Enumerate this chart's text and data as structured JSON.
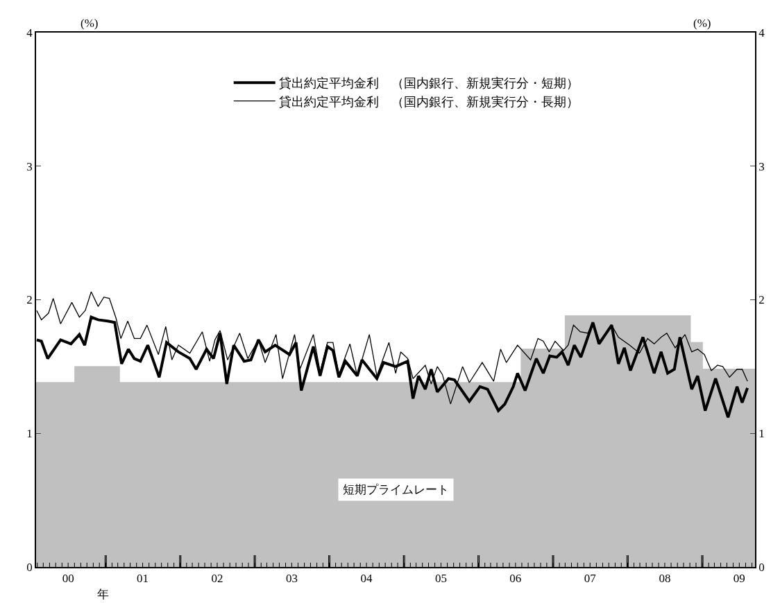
{
  "chart_data": {
    "type": "line",
    "ylabel": "(%)",
    "y2label": "(%)",
    "annotations": [
      "年"
    ],
    "xlim": [
      "2000-01-26",
      "2009-09-16"
    ],
    "xticks": [
      {
        "value": "2000-07-01",
        "label": "00"
      },
      {
        "value": "2001-01-01",
        "label": null
      },
      {
        "value": "2001-07-01",
        "label": "01"
      },
      {
        "value": "2002-01-01",
        "label": null
      },
      {
        "value": "2002-07-01",
        "label": "02"
      },
      {
        "value": "2003-01-01",
        "label": null
      },
      {
        "value": "2003-07-01",
        "label": "03"
      },
      {
        "value": "2004-01-01",
        "label": null
      },
      {
        "value": "2004-07-01",
        "label": "04"
      },
      {
        "value": "2005-01-01",
        "label": null
      },
      {
        "value": "2005-07-01",
        "label": "05"
      },
      {
        "value": "2006-01-01",
        "label": null
      },
      {
        "value": "2006-07-01",
        "label": "06"
      },
      {
        "value": "2007-01-01",
        "label": null
      },
      {
        "value": "2007-07-01",
        "label": "07"
      },
      {
        "value": "2008-01-01",
        "label": null
      },
      {
        "value": "2008-07-01",
        "label": "08"
      },
      {
        "value": "2009-01-01",
        "label": null
      },
      {
        "value": "2009-07-01",
        "label": "09"
      }
    ],
    "ylim": [
      0,
      4
    ],
    "yticks": [
      0,
      1,
      2,
      3,
      4
    ],
    "y2lim": [
      0,
      4
    ],
    "y2ticks": [
      0,
      1,
      2,
      3,
      4
    ],
    "legend": "top",
    "marker": "none",
    "line_style": "solid",
    "series": [
      {
        "name": "短期プライムレート",
        "type": "area",
        "color": "#c0c0c0",
        "x": [
          "2000-01-26",
          "2000-08-03",
          "2000-08-03",
          "2001-03-09",
          "2001-03-09",
          "2006-07-29",
          "2006-07-29",
          "2007-03-02",
          "2007-03-02",
          "2008-11-03",
          "2008-11-03",
          "2009-01-01",
          "2009-01-01",
          "2009-09-16"
        ],
        "values": [
          1.38,
          1.38,
          1.5,
          1.5,
          1.38,
          1.38,
          1.63,
          1.63,
          1.88,
          1.88,
          1.68,
          1.68,
          1.48,
          1.48
        ]
      },
      {
        "name": "貸出約定平均金利　（国内銀行、新規実行分・短期）",
        "color": "#000000",
        "x": [
          "2000-01-29",
          "2000-02-21",
          "2000-03-23",
          "2000-05-25",
          "2000-07-15",
          "2000-08-25",
          "2000-09-20",
          "2000-10-22",
          "2000-11-25",
          "2001-01-11",
          "2001-02-14",
          "2001-03-20",
          "2001-04-22",
          "2001-05-21",
          "2001-06-20",
          "2001-07-26",
          "2001-09-20",
          "2001-10-26",
          "2001-12-23",
          "2002-02-17",
          "2002-03-20",
          "2002-05-10",
          "2002-06-13",
          "2002-07-15",
          "2002-08-17",
          "2002-09-20",
          "2002-11-10",
          "2002-12-13",
          "2003-01-19",
          "2003-02-21",
          "2003-04-11",
          "2003-06-20",
          "2003-07-22",
          "2003-08-17",
          "2003-10-15",
          "2003-11-17",
          "2003-12-23",
          "2004-01-19",
          "2004-02-17",
          "2004-03-20",
          "2004-05-17",
          "2004-06-09",
          "2004-08-21",
          "2004-09-23",
          "2004-11-21",
          "2005-01-19",
          "2005-02-14",
          "2005-03-13",
          "2005-04-15",
          "2005-05-14",
          "2005-06-13",
          "2005-08-07",
          "2005-09-05",
          "2005-11-17",
          "2006-01-08",
          "2006-02-14",
          "2006-04-08",
          "2006-05-10",
          "2006-06-20",
          "2006-07-11",
          "2006-08-17",
          "2006-10-11",
          "2006-11-14",
          "2006-12-16",
          "2007-01-19",
          "2007-02-14",
          "2007-03-16",
          "2007-04-15",
          "2007-05-17",
          "2007-07-15",
          "2007-08-14",
          "2007-10-15",
          "2007-11-17",
          "2007-12-16",
          "2008-01-15",
          "2008-03-16",
          "2008-05-10",
          "2008-06-13",
          "2008-07-15",
          "2008-08-17",
          "2008-09-13",
          "2008-11-10",
          "2008-12-09",
          "2009-01-15",
          "2009-03-07",
          "2009-05-07",
          "2009-06-20",
          "2009-07-15",
          "2009-08-10"
        ],
        "values": [
          1.7,
          1.69,
          1.56,
          1.7,
          1.67,
          1.74,
          1.66,
          1.87,
          1.85,
          1.84,
          1.83,
          1.52,
          1.63,
          1.56,
          1.54,
          1.66,
          1.42,
          1.68,
          1.61,
          1.56,
          1.48,
          1.63,
          1.56,
          1.75,
          1.37,
          1.66,
          1.54,
          1.55,
          1.7,
          1.61,
          1.66,
          1.59,
          1.68,
          1.32,
          1.65,
          1.43,
          1.65,
          1.62,
          1.42,
          1.54,
          1.43,
          1.55,
          1.41,
          1.53,
          1.5,
          1.54,
          1.26,
          1.43,
          1.33,
          1.48,
          1.31,
          1.41,
          1.4,
          1.24,
          1.35,
          1.33,
          1.17,
          1.22,
          1.35,
          1.45,
          1.32,
          1.56,
          1.45,
          1.58,
          1.57,
          1.61,
          1.51,
          1.66,
          1.57,
          1.83,
          1.67,
          1.81,
          1.52,
          1.64,
          1.47,
          1.72,
          1.45,
          1.61,
          1.45,
          1.48,
          1.72,
          1.33,
          1.43,
          1.17,
          1.41,
          1.12,
          1.35,
          1.23,
          1.34
        ]
      },
      {
        "name": "貸出約定平均金利　（国内銀行、新規実行分・長期）",
        "color": "#000000",
        "x": [
          "2000-01-29",
          "2000-02-21",
          "2000-03-27",
          "2000-04-19",
          "2000-05-25",
          "2000-07-19",
          "2000-08-25",
          "2000-09-23",
          "2000-10-22",
          "2000-11-25",
          "2000-12-23",
          "2001-01-19",
          "2001-02-21",
          "2001-03-16",
          "2001-04-19",
          "2001-05-21",
          "2001-06-20",
          "2001-07-22",
          "2001-09-16",
          "2001-10-22",
          "2001-11-21",
          "2001-12-23",
          "2002-02-17",
          "2002-04-19",
          "2002-05-25",
          "2002-06-20",
          "2002-07-15",
          "2002-08-21",
          "2002-09-20",
          "2002-10-19",
          "2002-11-28",
          "2003-01-19",
          "2003-02-21",
          "2003-04-15",
          "2003-05-17",
          "2003-07-15",
          "2003-08-10",
          "2003-10-15",
          "2003-11-17",
          "2003-12-23",
          "2004-01-19",
          "2004-02-17",
          "2004-04-11",
          "2004-05-17",
          "2004-07-15",
          "2004-08-21",
          "2004-10-19",
          "2004-11-21",
          "2004-12-16",
          "2005-01-19",
          "2005-02-14",
          "2005-04-15",
          "2005-05-14",
          "2005-06-13",
          "2005-07-08",
          "2005-08-17",
          "2005-10-15",
          "2005-11-17",
          "2006-01-19",
          "2006-03-16",
          "2006-04-19",
          "2006-05-17",
          "2006-07-11",
          "2006-09-13",
          "2006-10-19",
          "2006-11-14",
          "2006-12-13",
          "2007-01-11",
          "2007-02-21",
          "2007-03-16",
          "2007-04-11",
          "2007-05-14",
          "2007-06-20",
          "2007-07-15",
          "2007-08-17",
          "2007-10-15",
          "2007-11-17",
          "2008-01-11",
          "2008-02-28",
          "2008-04-08",
          "2008-05-10",
          "2008-06-13",
          "2008-07-11",
          "2008-08-21",
          "2008-10-08",
          "2008-11-10",
          "2008-12-09",
          "2009-01-11",
          "2009-02-14",
          "2009-03-16",
          "2009-04-11",
          "2009-05-14",
          "2009-06-20",
          "2009-07-15",
          "2009-08-10"
        ],
        "values": [
          1.92,
          1.85,
          1.9,
          2.01,
          1.82,
          1.98,
          1.87,
          1.92,
          2.06,
          1.95,
          2.02,
          2.01,
          1.86,
          1.71,
          1.84,
          1.71,
          1.71,
          1.81,
          1.59,
          1.8,
          1.55,
          1.66,
          1.6,
          1.76,
          1.54,
          1.7,
          1.77,
          1.55,
          1.65,
          1.75,
          1.56,
          1.7,
          1.53,
          1.74,
          1.41,
          1.74,
          1.48,
          1.74,
          1.46,
          1.68,
          1.68,
          1.44,
          1.67,
          1.43,
          1.74,
          1.43,
          1.68,
          1.45,
          1.61,
          1.56,
          1.41,
          1.51,
          1.37,
          1.5,
          1.44,
          1.22,
          1.5,
          1.38,
          1.53,
          1.39,
          1.63,
          1.53,
          1.66,
          1.55,
          1.71,
          1.69,
          1.61,
          1.69,
          1.62,
          1.66,
          1.81,
          1.76,
          1.75,
          1.83,
          1.69,
          1.81,
          1.72,
          1.66,
          1.6,
          1.71,
          1.67,
          1.72,
          1.75,
          1.64,
          1.74,
          1.61,
          1.63,
          1.59,
          1.47,
          1.51,
          1.5,
          1.42,
          1.48,
          1.48,
          1.39
        ]
      }
    ]
  }
}
